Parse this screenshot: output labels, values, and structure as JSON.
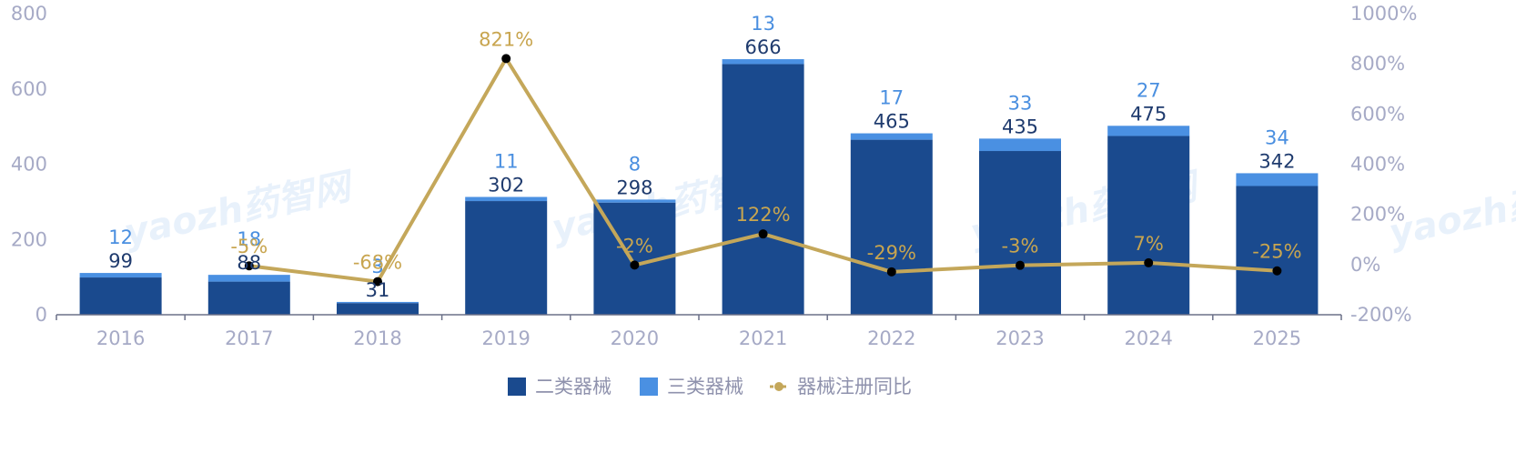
{
  "chart_data": {
    "type": "bar",
    "categories": [
      "2016",
      "2017",
      "2018",
      "2019",
      "2020",
      "2021",
      "2022",
      "2023",
      "2024",
      "2025"
    ],
    "series": [
      {
        "name": "二类器械",
        "kind": "bar-stacked",
        "axis": "left",
        "color": "#1a4a8e",
        "values": [
          99,
          88,
          31,
          302,
          298,
          666,
          465,
          435,
          475,
          342
        ]
      },
      {
        "name": "三类器械",
        "kind": "bar-stacked",
        "axis": "left",
        "color": "#4a90e2",
        "values": [
          12,
          18,
          3,
          11,
          8,
          13,
          17,
          33,
          27,
          34
        ]
      },
      {
        "name": "器械注册同比",
        "kind": "line",
        "axis": "right",
        "color": "#c4a75a",
        "values": [
          null,
          -5,
          -68,
          821,
          -2,
          122,
          -29,
          -3,
          7,
          -25
        ],
        "labels": [
          "",
          "-5%",
          "-68%",
          "821%",
          "-2%",
          "122%",
          "-29%",
          "-3%",
          "7%",
          "-25%"
        ]
      }
    ],
    "y_left": {
      "ticks": [
        "0",
        "200",
        "400",
        "600",
        "800"
      ],
      "ylim": [
        0,
        800
      ]
    },
    "y_right": {
      "ticks": [
        "-200%",
        "0%",
        "200%",
        "400%",
        "600%",
        "800%",
        "1000%"
      ],
      "ylim": [
        -200,
        1000
      ]
    },
    "legend": {
      "position": "bottom-center"
    },
    "grid": false
  },
  "watermark": "yaozh药智网"
}
